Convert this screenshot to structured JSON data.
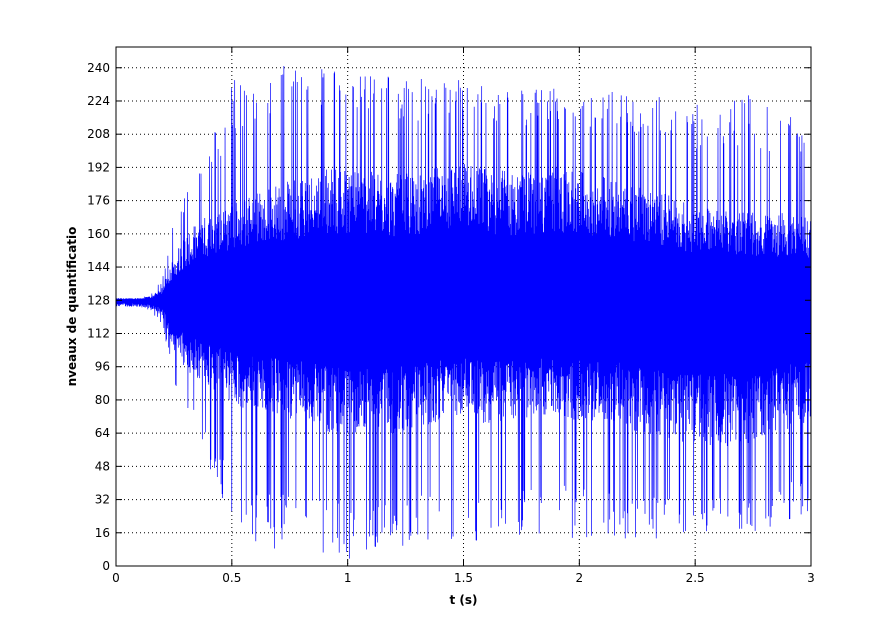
{
  "colors": {
    "background": "#ffffff",
    "axes": "#000000",
    "grid": "#000000",
    "signal": "#0000ff"
  },
  "chart_data": {
    "type": "line",
    "title": "",
    "xlabel": "t (s)",
    "ylabel": "nveaux de quantificatio",
    "xlim": [
      0,
      3
    ],
    "ylim": [
      0,
      250
    ],
    "grid": true,
    "grid_style": "dotted",
    "legend": null,
    "x_ticks": [
      0,
      0.5,
      1,
      1.5,
      2,
      2.5,
      3
    ],
    "x_tick_labels": [
      "0",
      "0.5",
      "1",
      "1.5",
      "2",
      "2.5",
      "3"
    ],
    "y_ticks": [
      0,
      16,
      32,
      48,
      64,
      80,
      96,
      112,
      128,
      144,
      160,
      176,
      192,
      208,
      224,
      240
    ],
    "y_tick_labels": [
      "0",
      "16",
      "32",
      "48",
      "64",
      "80",
      "96",
      "112",
      "128",
      "144",
      "160",
      "176",
      "192",
      "208",
      "224",
      "240"
    ],
    "series": [
      {
        "color": "#0000ff",
        "description_of_shape": "oscillating quantized audio signal centered near 128",
        "envelope": {
          "t": [
            0,
            0.1,
            0.15,
            0.2,
            0.25,
            0.3,
            0.35,
            0.4,
            0.45,
            0.5,
            0.6,
            0.7,
            0.8,
            0.9,
            1.0,
            1.1,
            1.2,
            1.3,
            1.4,
            1.5,
            1.6,
            1.7,
            1.8,
            1.9,
            2.0,
            2.1,
            2.2,
            2.3,
            2.4,
            2.5,
            2.6,
            2.7,
            2.8,
            2.9,
            3.0
          ],
          "outer_max": [
            129,
            129,
            131,
            138,
            170,
            180,
            190,
            205,
            215,
            237,
            240,
            242,
            243,
            243,
            243,
            240,
            238,
            235,
            235,
            236,
            233,
            230,
            230,
            231,
            229,
            228,
            230,
            228,
            227,
            224,
            226,
            228,
            224,
            220,
            218
          ],
          "outer_min": [
            125,
            125,
            123,
            116,
            88,
            75,
            65,
            45,
            30,
            20,
            10,
            5,
            3,
            3,
            3,
            5,
            8,
            10,
            10,
            8,
            12,
            12,
            14,
            15,
            12,
            12,
            10,
            12,
            14,
            15,
            15,
            14,
            18,
            22,
            26
          ],
          "inner_max": [
            129,
            129,
            130,
            134,
            150,
            160,
            165,
            170,
            172,
            175,
            180,
            184,
            188,
            192,
            192,
            190,
            189,
            189,
            193,
            195,
            192,
            190,
            190,
            192,
            190,
            188,
            186,
            182,
            178,
            173,
            172,
            172,
            170,
            170,
            168
          ],
          "inner_min": [
            125,
            125,
            124,
            120,
            104,
            95,
            90,
            85,
            82,
            78,
            73,
            72,
            70,
            65,
            62,
            63,
            64,
            66,
            70,
            73,
            68,
            70,
            72,
            72,
            70,
            70,
            67,
            62,
            60,
            58,
            57,
            58,
            62,
            66,
            70
          ]
        }
      }
    ]
  }
}
